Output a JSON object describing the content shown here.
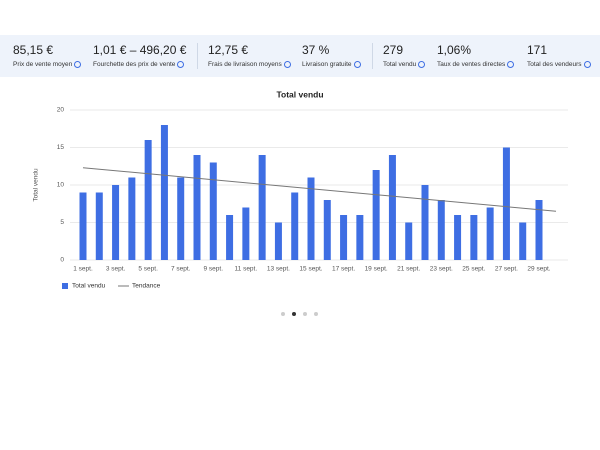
{
  "stats": [
    {
      "value": "85,15 €",
      "label": "Prix de vente moyen"
    },
    {
      "value": "1,01 € – 496,20 €",
      "label": "Fourchette des prix de vente"
    },
    {
      "value": "12,75 €",
      "label": "Frais de livraison moyens"
    },
    {
      "value": "37 %",
      "label": "Livraison gratuite"
    },
    {
      "value": "279",
      "label": "Total vendu"
    },
    {
      "value": "1,06%",
      "label": "Taux de ventes directes"
    },
    {
      "value": "171",
      "label": "Total des vendeurs"
    }
  ],
  "chart_data": {
    "type": "bar",
    "title": "Total vendu",
    "ylabel": "Total vendu",
    "categories": [
      "1 sept.",
      null,
      "3 sept.",
      null,
      "5 sept.",
      null,
      "7 sept.",
      null,
      "9 sept.",
      null,
      "11 sept.",
      null,
      "13 sept.",
      null,
      "15 sept.",
      null,
      "17 sept.",
      null,
      "19 sept.",
      null,
      "21 sept.",
      null,
      "23 sept.",
      null,
      "25 sept.",
      null,
      "27 sept.",
      null,
      "29 sept."
    ],
    "series": [
      {
        "name": "Total vendu",
        "color": "#3e6ee3",
        "values": [
          9,
          9,
          10,
          11,
          16,
          18,
          11,
          14,
          13,
          6,
          7,
          14,
          5,
          9,
          11,
          8,
          6,
          6,
          12,
          14,
          5,
          10,
          8,
          6,
          6,
          7,
          15,
          5,
          8
        ]
      }
    ],
    "trend": {
      "name": "Tendance",
      "color": "#777777",
      "values": [
        12.3,
        6.5
      ]
    },
    "ylim": [
      0,
      20
    ],
    "yticks": [
      0,
      5,
      10,
      15,
      20
    ],
    "grid": true
  }
}
